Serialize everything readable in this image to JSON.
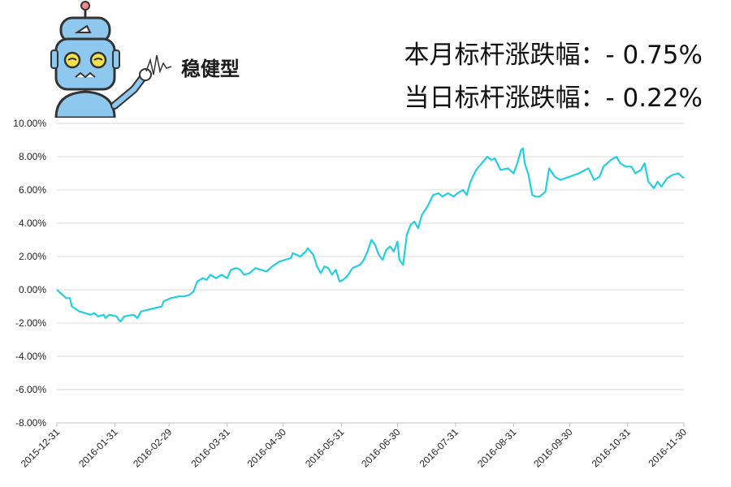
{
  "badge": {
    "text": "稳健型",
    "icon": "robot-mascot-icon"
  },
  "headline": {
    "month_label": "本月标杆涨跌幅：- 0.75%",
    "day_label": "当日标杆涨跌幅：- 0.22%"
  },
  "colors": {
    "line": "#22cfe0",
    "grid": "#d9d9d9",
    "axis": "#bfbfbf",
    "robot_face": "#8fc8ef"
  },
  "chart_data": {
    "type": "line",
    "title": "",
    "xlabel": "",
    "ylabel": "",
    "ylim": [
      -8,
      10
    ],
    "y_ticks": [
      "10.00%",
      "8.00%",
      "6.00%",
      "4.00%",
      "2.00%",
      "0.00%",
      "-2.00%",
      "-4.00%",
      "-6.00%",
      "-8.00%"
    ],
    "x_ticks": [
      "2015-12-31",
      "2016-01-31",
      "2016-02-29",
      "2016-03-31",
      "2016-04-30",
      "2016-05-31",
      "2016-06-30",
      "2016-07-31",
      "2016-08-31",
      "2016-09-30",
      "2016-10-31",
      "2016-11-30"
    ],
    "grid": true,
    "legend": "none",
    "series": [
      {
        "values": [
          [
            "2015-12-31",
            0.0
          ],
          [
            "2016-01-05",
            -0.5
          ],
          [
            "2016-01-07",
            -0.5
          ],
          [
            "2016-01-08",
            -1.0
          ],
          [
            "2016-01-12",
            -1.3
          ],
          [
            "2016-01-15",
            -1.4
          ],
          [
            "2016-01-18",
            -1.5
          ],
          [
            "2016-01-20",
            -1.4
          ],
          [
            "2016-01-22",
            -1.6
          ],
          [
            "2016-01-25",
            -1.5
          ],
          [
            "2016-01-26",
            -1.7
          ],
          [
            "2016-01-28",
            -1.5
          ],
          [
            "2016-02-01",
            -1.6
          ],
          [
            "2016-02-02",
            -1.8
          ],
          [
            "2016-02-03",
            -1.9
          ],
          [
            "2016-02-05",
            -1.6
          ],
          [
            "2016-02-10",
            -1.5
          ],
          [
            "2016-02-12",
            -1.7
          ],
          [
            "2016-02-14",
            -1.3
          ],
          [
            "2016-02-18",
            -1.2
          ],
          [
            "2016-02-25",
            -1.0
          ],
          [
            "2016-02-26",
            -0.7
          ],
          [
            "2016-03-01",
            -0.5
          ],
          [
            "2016-03-05",
            -0.4
          ],
          [
            "2016-03-08",
            -0.4
          ],
          [
            "2016-03-11",
            -0.3
          ],
          [
            "2016-03-13",
            -0.1
          ],
          [
            "2016-03-15",
            0.5
          ],
          [
            "2016-03-18",
            0.7
          ],
          [
            "2016-03-20",
            0.6
          ],
          [
            "2016-03-22",
            0.9
          ],
          [
            "2016-03-25",
            0.7
          ],
          [
            "2016-03-28",
            0.9
          ],
          [
            "2016-03-31",
            0.7
          ],
          [
            "2016-04-02",
            1.2
          ],
          [
            "2016-04-05",
            1.3
          ],
          [
            "2016-04-07",
            1.2
          ],
          [
            "2016-04-09",
            0.9
          ],
          [
            "2016-04-12",
            1.0
          ],
          [
            "2016-04-15",
            1.3
          ],
          [
            "2016-04-18",
            1.2
          ],
          [
            "2016-04-21",
            1.1
          ],
          [
            "2016-04-24",
            1.4
          ],
          [
            "2016-04-28",
            1.7
          ],
          [
            "2016-05-01",
            1.8
          ],
          [
            "2016-05-04",
            1.9
          ],
          [
            "2016-05-05",
            2.2
          ],
          [
            "2016-05-07",
            2.1
          ],
          [
            "2016-05-09",
            2.0
          ],
          [
            "2016-05-12",
            2.3
          ],
          [
            "2016-05-13",
            2.5
          ],
          [
            "2016-05-16",
            2.1
          ],
          [
            "2016-05-18",
            1.4
          ],
          [
            "2016-05-20",
            1.0
          ],
          [
            "2016-05-22",
            1.4
          ],
          [
            "2016-05-24",
            1.3
          ],
          [
            "2016-05-26",
            0.9
          ],
          [
            "2016-05-28",
            1.2
          ],
          [
            "2016-05-30",
            0.5
          ],
          [
            "2016-06-01",
            0.6
          ],
          [
            "2016-06-03",
            0.8
          ],
          [
            "2016-06-06",
            1.3
          ],
          [
            "2016-06-08",
            1.4
          ],
          [
            "2016-06-10",
            1.5
          ],
          [
            "2016-06-12",
            1.8
          ],
          [
            "2016-06-14",
            2.3
          ],
          [
            "2016-06-16",
            3.0
          ],
          [
            "2016-06-18",
            2.7
          ],
          [
            "2016-06-20",
            2.1
          ],
          [
            "2016-06-22",
            1.8
          ],
          [
            "2016-06-24",
            2.4
          ],
          [
            "2016-06-26",
            2.6
          ],
          [
            "2016-06-28",
            2.3
          ],
          [
            "2016-06-30",
            2.9
          ],
          [
            "2016-07-01",
            1.8
          ],
          [
            "2016-07-03",
            1.5
          ],
          [
            "2016-07-05",
            3.3
          ],
          [
            "2016-07-07",
            3.9
          ],
          [
            "2016-07-09",
            4.1
          ],
          [
            "2016-07-11",
            3.7
          ],
          [
            "2016-07-13",
            4.5
          ],
          [
            "2016-07-16",
            5.0
          ],
          [
            "2016-07-19",
            5.7
          ],
          [
            "2016-07-22",
            5.8
          ],
          [
            "2016-07-24",
            5.6
          ],
          [
            "2016-07-27",
            5.8
          ],
          [
            "2016-07-30",
            5.6
          ],
          [
            "2016-08-01",
            5.8
          ],
          [
            "2016-08-04",
            6.0
          ],
          [
            "2016-08-06",
            5.7
          ],
          [
            "2016-08-08",
            6.5
          ],
          [
            "2016-08-11",
            7.2
          ],
          [
            "2016-08-14",
            7.6
          ],
          [
            "2016-08-17",
            8.0
          ],
          [
            "2016-08-19",
            7.8
          ],
          [
            "2016-08-21",
            7.9
          ],
          [
            "2016-08-24",
            7.2
          ],
          [
            "2016-08-28",
            7.3
          ],
          [
            "2016-08-31",
            7.0
          ],
          [
            "2016-09-02",
            7.6
          ],
          [
            "2016-09-04",
            8.4
          ],
          [
            "2016-09-05",
            8.5
          ],
          [
            "2016-09-06",
            7.6
          ],
          [
            "2016-09-08",
            6.9
          ],
          [
            "2016-09-10",
            5.7
          ],
          [
            "2016-09-12",
            5.6
          ],
          [
            "2016-09-14",
            5.6
          ],
          [
            "2016-09-17",
            5.9
          ],
          [
            "2016-09-19",
            7.3
          ],
          [
            "2016-09-22",
            6.8
          ],
          [
            "2016-09-25",
            6.6
          ],
          [
            "2016-09-30",
            6.8
          ],
          [
            "2016-10-05",
            7.0
          ],
          [
            "2016-10-10",
            7.3
          ],
          [
            "2016-10-13",
            6.6
          ],
          [
            "2016-10-16",
            6.8
          ],
          [
            "2016-10-18",
            7.4
          ],
          [
            "2016-10-22",
            7.8
          ],
          [
            "2016-10-25",
            8.0
          ],
          [
            "2016-10-27",
            7.6
          ],
          [
            "2016-10-30",
            7.4
          ],
          [
            "2016-11-02",
            7.4
          ],
          [
            "2016-11-04",
            7.0
          ],
          [
            "2016-11-07",
            7.2
          ],
          [
            "2016-11-09",
            7.6
          ],
          [
            "2016-11-11",
            6.5
          ],
          [
            "2016-11-14",
            6.1
          ],
          [
            "2016-11-16",
            6.5
          ],
          [
            "2016-11-18",
            6.2
          ],
          [
            "2016-11-21",
            6.7
          ],
          [
            "2016-11-24",
            6.9
          ],
          [
            "2016-11-27",
            7.0
          ],
          [
            "2016-11-30",
            6.7
          ]
        ]
      }
    ]
  }
}
